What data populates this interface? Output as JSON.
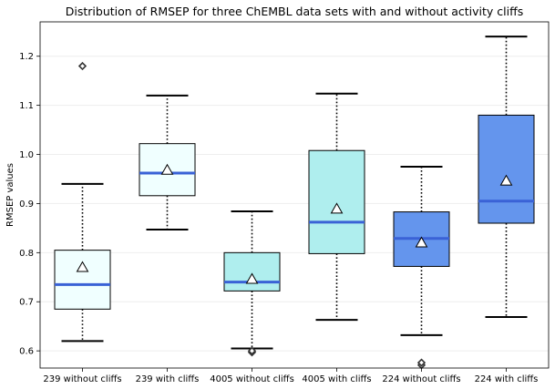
{
  "chart_data": {
    "type": "box",
    "title": "Distribution of RMSEP for three ChEMBL data sets with and without activity cliffs",
    "xlabel": "",
    "ylabel": "RMSEP values",
    "ylim": [
      0.565,
      1.27
    ],
    "yticks": [
      0.6,
      0.7,
      0.8,
      0.9,
      1.0,
      1.1,
      1.2
    ],
    "yticklabels": [
      "0.6",
      "0.7",
      "0.8",
      "0.9",
      "1.0",
      "1.1",
      "1.2"
    ],
    "grid": "horizontal",
    "median_color": "#3a62d6",
    "boxes": [
      {
        "label": "239 without cliffs",
        "color": "#f0ffff",
        "whisker_low": 0.62,
        "q1": 0.685,
        "median": 0.735,
        "q3": 0.805,
        "whisker_high": 0.94,
        "mean": 0.77,
        "outliers": [
          1.18
        ]
      },
      {
        "label": "239 with cliffs",
        "color": "#f0ffff",
        "whisker_low": 0.847,
        "q1": 0.916,
        "median": 0.962,
        "q3": 1.022,
        "whisker_high": 1.12,
        "mean": 0.968,
        "outliers": []
      },
      {
        "label": "4005 without cliffs",
        "color": "#afeeee",
        "whisker_low": 0.605,
        "q1": 0.722,
        "median": 0.74,
        "q3": 0.8,
        "whisker_high": 0.884,
        "mean": 0.746,
        "outliers": [
          0.597,
          0.6
        ]
      },
      {
        "label": "4005 with cliffs",
        "color": "#afeeee",
        "whisker_low": 0.663,
        "q1": 0.798,
        "median": 0.862,
        "q3": 1.008,
        "whisker_high": 1.124,
        "mean": 0.889,
        "outliers": []
      },
      {
        "label": "224 without cliffs",
        "color": "#6495ed",
        "whisker_low": 0.632,
        "q1": 0.772,
        "median": 0.829,
        "q3": 0.883,
        "whisker_high": 0.975,
        "mean": 0.82,
        "outliers": [
          0.571,
          0.576
        ]
      },
      {
        "label": "224 with cliffs",
        "color": "#6495ed",
        "whisker_low": 0.669,
        "q1": 0.86,
        "median": 0.905,
        "q3": 1.08,
        "whisker_high": 1.24,
        "mean": 0.946,
        "outliers": []
      }
    ]
  }
}
